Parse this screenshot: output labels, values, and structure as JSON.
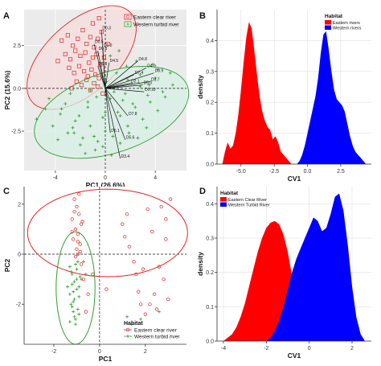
{
  "colors": {
    "red": "#e8231f",
    "blue": "#1a14d8",
    "green": "#2ea02c",
    "panelbg": "#ebebeb",
    "ellipse_red_fill": "#f6dede",
    "ellipse_green_fill": "#d7f0e6"
  },
  "panels": {
    "A": {
      "letter": "A"
    },
    "B": {
      "letter": "B"
    },
    "C": {
      "letter": "C"
    },
    "D": {
      "letter": "D"
    }
  },
  "chart_data": [
    {
      "id": "A",
      "type": "scatter",
      "xlabel": "PC1 (26.6%)",
      "ylabel": "PC2 (15.6%)",
      "xlim": [
        -6.5,
        6.5
      ],
      "ylim": [
        -4.8,
        4.6
      ],
      "xticks": [
        -4,
        0,
        4
      ],
      "xtick_labels": [
        "-4",
        "0",
        "4"
      ],
      "yticks": [
        -2.5,
        0,
        2.5
      ],
      "ytick_labels": [
        "-2.5",
        "0.0",
        "2.5"
      ],
      "grid": true,
      "legend": {
        "position": "top-right",
        "entries": [
          "Eastern clear river",
          "Western turbid river"
        ]
      },
      "series": [
        {
          "name": "Eastern clear river",
          "marker": "square",
          "color": "#e8231f",
          "x": [
            -3.5,
            -3.0,
            -2.6,
            -2.2,
            -1.8,
            -1.5,
            -1.2,
            -0.9,
            -0.6,
            -0.3,
            -3.2,
            -2.8,
            -2.4,
            -2.0,
            -1.6,
            -1.3,
            -1.0,
            -0.7,
            -0.4,
            -0.1,
            -2.9,
            -2.5,
            -2.1,
            -1.7,
            -1.4,
            -1.1,
            -0.8,
            -0.5,
            -2.3,
            -1.9,
            -1.5,
            -1.2,
            -0.9,
            -0.6,
            -0.2,
            -3.8,
            -1.0,
            -0.5,
            0.2,
            -2.7
          ],
          "y": [
            2.8,
            3.1,
            2.5,
            2.9,
            3.4,
            2.6,
            3.0,
            2.4,
            2.9,
            3.3,
            2.0,
            1.7,
            2.2,
            1.9,
            2.1,
            1.5,
            1.8,
            2.0,
            1.4,
            1.8,
            1.2,
            0.9,
            1.3,
            1.0,
            0.7,
            1.1,
            0.8,
            0.6,
            0.4,
            0.2,
            0.5,
            -0.1,
            0.3,
            0.1,
            -0.3,
            1.6,
            3.8,
            4.1,
            2.6,
            0.0
          ]
        },
        {
          "name": "Western turbid river",
          "marker": "cross",
          "color": "#2ea02c",
          "x": [
            -5.5,
            -4.8,
            -4.2,
            -3.6,
            -3.0,
            -2.4,
            -1.8,
            -1.2,
            -0.6,
            0.0,
            0.6,
            1.2,
            1.8,
            2.4,
            3.0,
            3.6,
            4.2,
            4.8,
            5.4,
            -4.5,
            -3.8,
            -3.2,
            -2.6,
            -2.0,
            -1.4,
            -0.8,
            -0.2,
            0.4,
            1.0,
            1.6,
            2.2,
            2.8,
            3.4,
            4.0,
            4.6,
            5.2,
            -3.5,
            -2.8,
            -2.1,
            -1.4,
            -0.7,
            0.0,
            0.7,
            1.4,
            2.1,
            2.8,
            3.5,
            4.2,
            -2.5,
            -1.6,
            -0.9,
            -0.2,
            0.5,
            1.2,
            1.9,
            2.6,
            3.3,
            -1.2,
            0.1,
            0.9,
            1.7,
            2.5,
            3.8,
            0.4,
            1.1,
            1.8
          ],
          "y": [
            -1.8,
            -1.2,
            -2.2,
            -1.5,
            -2.6,
            -1.9,
            -2.9,
            -2.2,
            -3.1,
            -2.5,
            -2.8,
            -1.6,
            -2.2,
            -1.1,
            -1.8,
            -0.8,
            -1.3,
            -0.5,
            0.2,
            -0.6,
            -3.0,
            -0.9,
            -2.3,
            -3.3,
            -1.1,
            -3.6,
            -1.7,
            -0.6,
            -1.4,
            -0.3,
            -0.9,
            0.1,
            -0.4,
            0.6,
            -0.2,
            0.9,
            -1.2,
            -0.3,
            -1.6,
            -0.8,
            -0.5,
            -1.4,
            -0.2,
            -0.7,
            0.3,
            0.8,
            0.2,
            1.1,
            -2.6,
            -3.8,
            -2.8,
            -3.4,
            -3.9,
            -3.2,
            -2.6,
            -2.9,
            -2.3,
            -0.1,
            0.4,
            0.9,
            1.3,
            1.6,
            1.4,
            1.9,
            2.2,
            0.5
          ]
        }
      ],
      "ellipses": [
        {
          "group": "Eastern clear river",
          "cx": -1.9,
          "cy": 1.8,
          "rx": 4.8,
          "ry": 2.3,
          "angle_deg": 28
        },
        {
          "group": "Western turbid river",
          "cx": 0.5,
          "cy": -1.4,
          "rx": 6.3,
          "ry": 2.4,
          "angle_deg": 12
        }
      ],
      "loadings": [
        {
          "label": "D0.3",
          "x": -0.3,
          "y": 3.4
        },
        {
          "label": "D0.5",
          "x": -0.9,
          "y": 2.6
        },
        {
          "label": "D1.0",
          "x": -0.2,
          "y": 2.4
        },
        {
          "label": "D0.8",
          "x": -0.6,
          "y": 2.2
        },
        {
          "label": "D4.5",
          "x": 0.3,
          "y": 1.5
        },
        {
          "label": "D6.3",
          "x": -0.6,
          "y": 1.3
        },
        {
          "label": "D4.8",
          "x": 2.6,
          "y": 1.6
        },
        {
          "label": "D4.9",
          "x": 3.3,
          "y": 1.2
        },
        {
          "label": "D3.9",
          "x": 3.9,
          "y": 0.9
        },
        {
          "label": "D7.4",
          "x": 2.3,
          "y": 0.8
        },
        {
          "label": "D2.1",
          "x": 2.0,
          "y": 0.3
        },
        {
          "label": "D5.0",
          "x": 3.0,
          "y": 0.2
        },
        {
          "label": "D3.7",
          "x": 3.6,
          "y": 0.4
        },
        {
          "label": "D0.10",
          "x": 3.1,
          "y": -0.2
        },
        {
          "label": "D7.8",
          "x": 1.8,
          "y": -1.6
        },
        {
          "label": "D5.1",
          "x": 0.4,
          "y": -2.6
        },
        {
          "label": "D5.6",
          "x": 1.6,
          "y": -3.0
        },
        {
          "label": "D3.4",
          "x": 1.2,
          "y": -4.1
        }
      ]
    },
    {
      "id": "B",
      "type": "area",
      "xlabel": "CV1",
      "ylabel": "density",
      "xlim": [
        -6.8,
        4.8
      ],
      "ylim": [
        0,
        0.5
      ],
      "xticks": [
        -5,
        -2.5,
        0,
        2.5
      ],
      "xtick_labels": [
        "-5.0",
        "-2.5",
        "0.0",
        "2.5"
      ],
      "yticks": [
        0,
        0.1,
        0.2,
        0.3,
        0.4
      ],
      "ytick_labels": [
        "0.0",
        "0.1",
        "0.2",
        "0.3",
        "0.4"
      ],
      "grid": true,
      "legend": {
        "position": "top-right",
        "title": "Habitat",
        "entries": [
          "Eastern rivers",
          "Western rivers"
        ]
      },
      "series": [
        {
          "name": "Eastern rivers",
          "color": "#ff0000",
          "x": [
            -6.4,
            -6.2,
            -6.0,
            -5.8,
            -5.6,
            -5.4,
            -5.2,
            -5.0,
            -4.8,
            -4.6,
            -4.4,
            -4.2,
            -4.0,
            -3.8,
            -3.6,
            -3.4,
            -3.2,
            -3.0,
            -2.8,
            -2.6,
            -2.4,
            -2.2,
            -2.0,
            -1.8,
            -1.6,
            -1.4,
            -1.2
          ],
          "y": [
            0.0,
            0.04,
            0.07,
            0.05,
            0.06,
            0.1,
            0.16,
            0.24,
            0.33,
            0.41,
            0.46,
            0.44,
            0.37,
            0.29,
            0.22,
            0.17,
            0.14,
            0.12,
            0.11,
            0.08,
            0.09,
            0.07,
            0.04,
            0.03,
            0.02,
            0.01,
            0.0
          ]
        },
        {
          "name": "Western rivers",
          "color": "#0000ff",
          "x": [
            -0.8,
            -0.6,
            -0.4,
            -0.2,
            0.0,
            0.2,
            0.4,
            0.6,
            0.8,
            1.0,
            1.2,
            1.4,
            1.6,
            1.8,
            2.0,
            2.2,
            2.4,
            2.6,
            2.8,
            3.0,
            3.2,
            3.4,
            3.6,
            3.8,
            4.0,
            4.2,
            4.4
          ],
          "y": [
            0.0,
            0.01,
            0.03,
            0.06,
            0.1,
            0.14,
            0.18,
            0.22,
            0.28,
            0.36,
            0.42,
            0.43,
            0.37,
            0.3,
            0.24,
            0.21,
            0.2,
            0.19,
            0.17,
            0.13,
            0.09,
            0.06,
            0.04,
            0.03,
            0.02,
            0.01,
            0.0
          ]
        }
      ]
    },
    {
      "id": "C",
      "type": "scatter",
      "xlabel": "PC1",
      "ylabel": "PC2",
      "xlim": [
        -3.3,
        3.8
      ],
      "ylim": [
        -3.6,
        2.7
      ],
      "xticks": [
        -2,
        0,
        2
      ],
      "xtick_labels": [
        "-2",
        "0",
        "2"
      ],
      "yticks": [
        -2,
        0,
        2
      ],
      "ytick_labels": [
        "-2",
        "0",
        "2"
      ],
      "grid": false,
      "legend": {
        "position": "bottom-right",
        "title": "Habitat",
        "entries": [
          "Eastern clear river",
          "Western turbid river"
        ]
      },
      "series": [
        {
          "name": "Eastern clear river",
          "marker": "circle",
          "color": "#e8231f",
          "x": [
            -1.1,
            -1.0,
            -0.9,
            -1.2,
            -0.8,
            -1.05,
            -0.95,
            -1.15,
            -0.85,
            -1.0,
            -0.9,
            -1.1,
            -0.75,
            -1.2,
            -0.95,
            -0.85,
            1.0,
            1.2,
            1.1,
            1.3,
            1.5,
            1.6,
            1.7,
            1.8,
            2.0,
            2.2,
            2.4,
            2.5,
            2.6,
            2.8,
            3.0,
            2.9,
            2.7,
            2.3,
            1.9,
            0.3,
            -0.3,
            -0.5,
            -0.6,
            -0.7,
            2.9,
            3.1,
            -1.05,
            -0.8,
            2.1,
            -0.95
          ],
          "y": [
            2.2,
            1.9,
            1.6,
            1.4,
            1.2,
            1.0,
            0.8,
            0.6,
            0.4,
            0.2,
            2.4,
            1.7,
            1.3,
            0.9,
            0.5,
            0.1,
            1.2,
            1.6,
            0.7,
            0.3,
            -0.3,
            -0.8,
            -1.5,
            -2.0,
            -2.4,
            -2.0,
            -1.6,
            -2.2,
            -0.5,
            -1.0,
            -1.8,
            0.6,
            1.9,
            0.9,
            -0.6,
            -1.4,
            -0.8,
            -1.6,
            -2.3,
            -1.0,
            1.4,
            2.2,
            -0.1,
            -0.4,
            1.8,
            0.0
          ]
        },
        {
          "name": "Western turbid river",
          "marker": "cross",
          "color": "#2ea02c",
          "x": [
            -1.3,
            -1.2,
            -1.1,
            -1.0,
            -0.9,
            -1.25,
            -1.15,
            -1.05,
            -0.95,
            -0.85,
            -1.3,
            -1.2,
            -1.1,
            -1.0,
            -0.9,
            -1.25,
            -1.15,
            -1.05,
            -0.95,
            -1.2,
            -1.1,
            -1.0,
            -0.9,
            -1.3,
            -1.15,
            -1.05,
            -0.8,
            -0.7,
            -0.6,
            -1.4,
            1.2,
            1.8,
            2.6,
            1.4
          ],
          "y": [
            -0.5,
            -0.8,
            -1.1,
            -1.4,
            -1.7,
            -2.0,
            -2.3,
            -2.6,
            -0.3,
            -0.9,
            -1.6,
            -2.1,
            -2.5,
            -1.0,
            -1.3,
            -0.7,
            -1.9,
            -2.8,
            -2.2,
            -1.2,
            -1.8,
            -0.6,
            -2.4,
            -2.7,
            -1.5,
            -0.4,
            -1.0,
            -0.3,
            -0.8,
            -1.3,
            -2.5,
            -2.6,
            -2.3,
            -2.8
          ]
        }
      ],
      "ellipses": [
        {
          "group": "Eastern clear river",
          "cx": 0.35,
          "cy": 0.85,
          "rx": 3.5,
          "ry": 1.75,
          "angle_deg": 0
        },
        {
          "group": "Western turbid river",
          "cx": -1.05,
          "cy": -1.35,
          "rx": 0.85,
          "ry": 2.25,
          "angle_deg": 0
        }
      ]
    },
    {
      "id": "D",
      "type": "area",
      "xlabel": "CV1",
      "ylabel": "density",
      "xlim": [
        -4.3,
        2.9
      ],
      "ylim": [
        0,
        0.45
      ],
      "xticks": [
        -4,
        -2,
        0,
        2
      ],
      "xtick_labels": [
        "-4",
        "-2",
        "0",
        "2"
      ],
      "yticks": [
        0,
        0.1,
        0.2,
        0.3,
        0.4
      ],
      "ytick_labels": [
        "0.0",
        "0.1",
        "0.2",
        "0.3",
        "0.4"
      ],
      "grid": true,
      "legend": {
        "position": "top-left",
        "title": "Habitat",
        "entries": [
          "Eastern Clear River",
          "Western Turbid River"
        ]
      },
      "series": [
        {
          "name": "Eastern Clear River",
          "color": "#ff0000",
          "x": [
            -4.0,
            -3.8,
            -3.6,
            -3.4,
            -3.2,
            -3.0,
            -2.8,
            -2.6,
            -2.4,
            -2.2,
            -2.0,
            -1.8,
            -1.6,
            -1.4,
            -1.2,
            -1.0,
            -0.8,
            -0.6,
            -0.4,
            -0.2,
            0.0,
            0.2
          ],
          "y": [
            0.0,
            0.01,
            0.02,
            0.04,
            0.07,
            0.11,
            0.16,
            0.21,
            0.26,
            0.3,
            0.33,
            0.345,
            0.35,
            0.34,
            0.31,
            0.26,
            0.19,
            0.12,
            0.06,
            0.02,
            0.005,
            0.0
          ]
        },
        {
          "name": "Western Turbid River",
          "color": "#0000ff",
          "x": [
            -2.0,
            -1.8,
            -1.6,
            -1.4,
            -1.2,
            -1.0,
            -0.8,
            -0.6,
            -0.4,
            -0.2,
            0.0,
            0.2,
            0.4,
            0.6,
            0.8,
            1.0,
            1.2,
            1.4,
            1.6,
            1.8,
            2.0,
            2.2,
            2.4,
            2.6
          ],
          "y": [
            0.0,
            0.01,
            0.03,
            0.06,
            0.1,
            0.15,
            0.2,
            0.24,
            0.27,
            0.3,
            0.33,
            0.36,
            0.35,
            0.32,
            0.33,
            0.37,
            0.42,
            0.43,
            0.38,
            0.28,
            0.16,
            0.07,
            0.02,
            0.0
          ]
        }
      ]
    }
  ]
}
